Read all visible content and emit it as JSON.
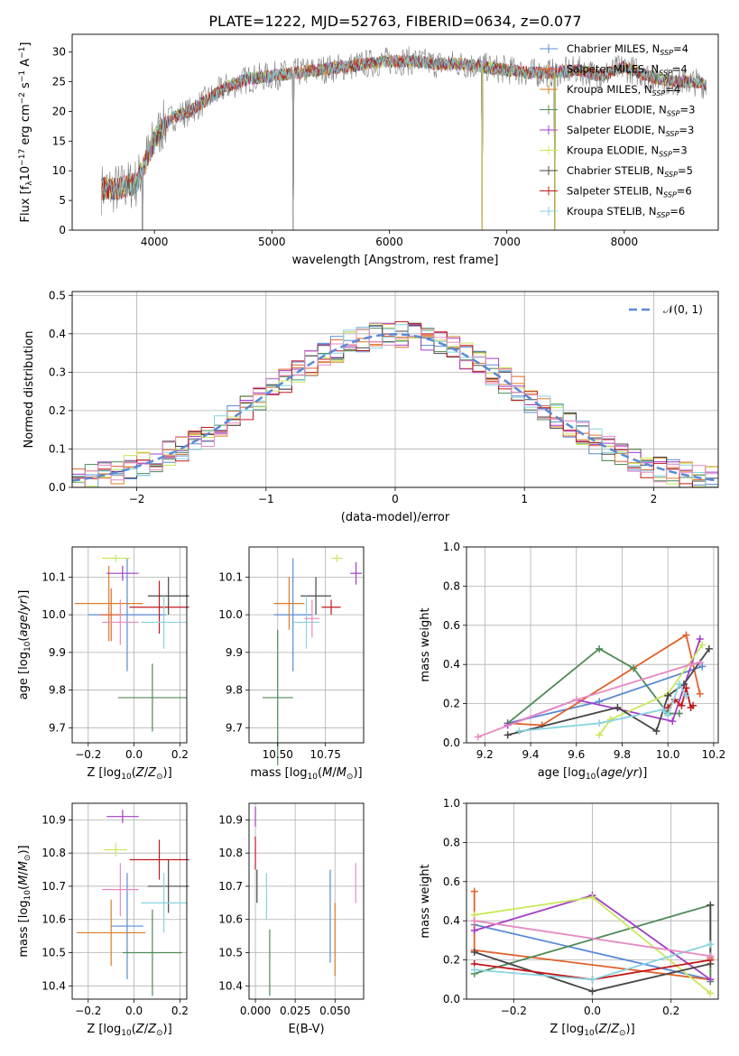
{
  "figure_title": "PLATE=1222, MJD=52763, FIBERID=0634, z=0.077",
  "colors": {
    "chabrier_miles": "#5a8ad6",
    "salpeter_miles": "#e0622c",
    "kroupa_miles": "#d97c27",
    "chabrier_elodie": "#4f8a57",
    "salpeter_elodie": "#a43dc6",
    "kroupa_elodie": "#c9e85b",
    "chabrier_stelib": "#474747",
    "salpeter_stelib": "#c0181c",
    "kroupa_stelib": "#87d3e0",
    "gaussian": "#5a8ad6",
    "observed": "#7f7f7f"
  },
  "chart_data": [
    {
      "id": "spectrum",
      "type": "line",
      "title": "PLATE=1222, MJD=52763, FIBERID=0634, z=0.077",
      "xlabel": "wavelength [Angstrom, rest frame]",
      "ylabel": "Flux [f_λ 10^-17 erg cm^-2 s^-1 A^-1]",
      "xlim": [
        3300,
        8800
      ],
      "ylim": [
        0,
        33
      ],
      "xticks": [
        "4000",
        "5000",
        "6000",
        "7000",
        "8000"
      ],
      "yticks": [
        "0",
        "5",
        "10",
        "15",
        "20",
        "25",
        "30"
      ],
      "grid": false,
      "legend": {
        "position": "right",
        "entries": [
          "Chabrier MILES, N_SSP=4",
          "Salpeter MILES, N_SSP=4",
          "Kroupa MILES, N_SSP=4",
          "Chabrier ELODIE, N_SSP=3",
          "Salpeter ELODIE, N_SSP=3",
          "Kroupa ELODIE, N_SSP=3",
          "Chabrier STELIB, N_SSP=5",
          "Salpeter STELIB, N_SSP=6",
          "Kroupa STELIB, N_SSP=6"
        ]
      },
      "continuum_x": [
        3550,
        3700,
        3850,
        3950,
        4050,
        4150,
        4300,
        4450,
        4600,
        4800,
        5000,
        5200,
        5400,
        5600,
        5800,
        6000,
        6200,
        6400,
        6600,
        6800,
        7000,
        7200,
        7400,
        7600,
        7800,
        8000,
        8200,
        8400,
        8600,
        8700
      ],
      "continuum_y": [
        7,
        7,
        8,
        13,
        17,
        19,
        20,
        22,
        24,
        25.5,
        26,
        26.5,
        27,
        27.5,
        28,
        28.5,
        28.5,
        28,
        28,
        27.5,
        27,
        26.5,
        26.5,
        27,
        26,
        27.5,
        26,
        25,
        25,
        24.5
      ],
      "spikes": [
        {
          "x": 3900,
          "y": 0
        },
        {
          "x": 5180,
          "y": 0
        },
        {
          "x": 6790,
          "y": 0
        },
        {
          "x": 7410,
          "y": 0
        }
      ]
    },
    {
      "id": "residual-distribution",
      "type": "histogram",
      "xlabel": "(data-model)/error",
      "ylabel": "Normed distribution",
      "xlim": [
        -2.5,
        2.5
      ],
      "ylim": [
        0,
        0.51
      ],
      "xticks": [
        "−2",
        "−1",
        "0",
        "1",
        "2"
      ],
      "yticks": [
        "0.0",
        "0.1",
        "0.2",
        "0.3",
        "0.4",
        "0.5"
      ],
      "grid": true,
      "legend": {
        "position": "top-right",
        "entries": [
          "𝒩(0, 1)"
        ]
      },
      "gaussian": {
        "mean": 0,
        "sigma": 1
      },
      "bin_width": 0.1
    },
    {
      "id": "age-vs-metallicity",
      "type": "scatter",
      "xlabel": "Z [log10(Z/Z⊙)]",
      "ylabel": "age [log10(age/yr)]",
      "xlim": [
        -0.27,
        0.23
      ],
      "ylim": [
        9.66,
        10.18
      ],
      "xticks": [
        "−0.2",
        "0.0",
        "0.2"
      ],
      "yticks": [
        "9.7",
        "9.8",
        "9.9",
        "10.0",
        "10.1"
      ],
      "grid": true,
      "points": [
        {
          "series": "chabrier_miles",
          "x": -0.03,
          "y": 10.0,
          "xerr": 0.17,
          "yerr": 0.15
        },
        {
          "series": "salpeter_miles",
          "x": -0.1,
          "y": 10.0,
          "xerr": 0.05,
          "yerr": 0.07
        },
        {
          "series": "kroupa_miles",
          "x": -0.11,
          "y": 10.03,
          "xerr": 0.15,
          "yerr": 0.1
        },
        {
          "series": "chabrier_elodie",
          "x": 0.08,
          "y": 9.78,
          "xerr": 0.15,
          "yerr": 0.09
        },
        {
          "series": "salpeter_elodie",
          "x": -0.05,
          "y": 10.11,
          "xerr": 0.07,
          "yerr": 0.02
        },
        {
          "series": "kroupa_elodie",
          "x": -0.08,
          "y": 10.15,
          "xerr": 0.06,
          "yerr": 0.01
        },
        {
          "series": "chabrier_stelib",
          "x": 0.15,
          "y": 10.05,
          "xerr": 0.09,
          "yerr": 0.05
        },
        {
          "series": "salpeter_stelib",
          "x": 0.11,
          "y": 10.02,
          "xerr": 0.13,
          "yerr": 0.07
        },
        {
          "series": "kroupa_stelib",
          "x": 0.13,
          "y": 9.98,
          "xerr": 0.1,
          "yerr": 0.07
        },
        {
          "series": "pink",
          "x": -0.06,
          "y": 9.98,
          "xerr": 0.08,
          "yerr": 0.06
        }
      ]
    },
    {
      "id": "age-vs-mass",
      "type": "scatter",
      "xlabel": "mass [log10(M/M⊙)]",
      "xlim": [
        10.35,
        10.95
      ],
      "ylim": [
        9.66,
        10.18
      ],
      "xticks": [
        "10.50",
        "10.75"
      ],
      "yticks": [
        "9.7",
        "9.8",
        "9.9",
        "10.0",
        "10.1"
      ],
      "grid": true,
      "points": [
        {
          "series": "chabrier_miles",
          "x": 10.58,
          "y": 10.0,
          "xerr": 0.1,
          "yerr": 0.15
        },
        {
          "series": "kroupa_miles",
          "x": 10.56,
          "y": 10.03,
          "xerr": 0.08,
          "yerr": 0.07
        },
        {
          "series": "chabrier_elodie",
          "x": 10.5,
          "y": 9.78,
          "xerr": 0.08,
          "yerr": 0.18
        },
        {
          "series": "salpeter_elodie",
          "x": 10.91,
          "y": 10.11,
          "xerr": 0.03,
          "yerr": 0.03
        },
        {
          "series": "kroupa_elodie",
          "x": 10.81,
          "y": 10.15,
          "xerr": 0.03,
          "yerr": 0.01
        },
        {
          "series": "chabrier_stelib",
          "x": 10.7,
          "y": 10.05,
          "xerr": 0.08,
          "yerr": 0.05
        },
        {
          "series": "salpeter_stelib",
          "x": 10.78,
          "y": 10.02,
          "xerr": 0.05,
          "yerr": 0.02
        },
        {
          "series": "kroupa_stelib",
          "x": 10.65,
          "y": 9.98,
          "xerr": 0.07,
          "yerr": 0.07
        },
        {
          "series": "pink",
          "x": 10.68,
          "y": 9.99,
          "xerr": 0.04,
          "yerr": 0.05
        }
      ]
    },
    {
      "id": "mass-weight-vs-age",
      "type": "line",
      "xlabel": "age [log10(age/yr)]",
      "ylabel": "mass weight",
      "xlim": [
        9.12,
        10.22
      ],
      "ylim": [
        0,
        1
      ],
      "xticks": [
        "9.2",
        "9.4",
        "9.6",
        "9.8",
        "10.0",
        "10.2"
      ],
      "yticks": [
        "0.0",
        "0.2",
        "0.4",
        "0.6",
        "0.8",
        "1.0"
      ],
      "grid": true,
      "series": [
        {
          "key": "chabrier_miles",
          "x": [
            9.3,
            9.7,
            10.15
          ],
          "y": [
            0.1,
            0.21,
            0.39
          ]
        },
        {
          "key": "salpeter_miles",
          "x": [
            9.3,
            9.45,
            10.08,
            10.14
          ],
          "y": [
            0.1,
            0.09,
            0.55,
            0.25
          ]
        },
        {
          "key": "chabrier_elodie",
          "x": [
            9.3,
            9.7,
            9.85,
            10.0,
            10.05
          ],
          "y": [
            0.1,
            0.48,
            0.38,
            0.15,
            0.15
          ]
        },
        {
          "key": "salpeter_elodie",
          "x": [
            9.3,
            9.6,
            10.02,
            10.14
          ],
          "y": [
            0.09,
            0.22,
            0.11,
            0.53
          ]
        },
        {
          "key": "kroupa_elodie",
          "x": [
            9.7,
            9.75,
            10.0,
            10.15
          ],
          "y": [
            0.04,
            0.12,
            0.25,
            0.5
          ]
        },
        {
          "key": "chabrier_stelib",
          "x": [
            9.3,
            9.78,
            9.95,
            10.0,
            10.07,
            10.18
          ],
          "y": [
            0.04,
            0.18,
            0.06,
            0.24,
            0.3,
            0.48
          ]
        },
        {
          "key": "salpeter_stelib",
          "x": [
            10.0,
            10.03,
            10.06,
            10.08,
            10.1,
            10.11
          ],
          "y": [
            0.18,
            0.22,
            0.19,
            0.28,
            0.18,
            0.19
          ]
        },
        {
          "key": "kroupa_stelib",
          "x": [
            9.35,
            9.7,
            9.98,
            10.0,
            10.05,
            10.08
          ],
          "y": [
            0.06,
            0.1,
            0.17,
            0.14,
            0.3,
            0.24
          ]
        },
        {
          "key": "pink",
          "x": [
            9.17,
            9.6,
            10.1,
            10.14
          ],
          "y": [
            0.03,
            0.22,
            0.4,
            0.41
          ]
        }
      ]
    },
    {
      "id": "mass-vs-metallicity",
      "type": "scatter",
      "xlabel": "Z [log10(Z/Z⊙)]",
      "ylabel": "mass [log10(M/M⊙)]",
      "xlim": [
        -0.27,
        0.23
      ],
      "ylim": [
        10.36,
        10.95
      ],
      "xticks": [
        "−0.2",
        "0.0",
        "0.2"
      ],
      "yticks": [
        "10.4",
        "10.5",
        "10.6",
        "10.7",
        "10.8",
        "10.9"
      ],
      "grid": true,
      "points": [
        {
          "series": "chabrier_miles",
          "x": -0.03,
          "y": 10.58,
          "xerr": 0.07,
          "yerr": 0.16
        },
        {
          "series": "kroupa_miles",
          "x": -0.1,
          "y": 10.56,
          "xerr": 0.15,
          "yerr": 0.1
        },
        {
          "series": "chabrier_elodie",
          "x": 0.08,
          "y": 10.5,
          "xerr": 0.13,
          "yerr": 0.13
        },
        {
          "series": "salpeter_elodie",
          "x": -0.05,
          "y": 10.91,
          "xerr": 0.07,
          "yerr": 0.02
        },
        {
          "series": "kroupa_elodie",
          "x": -0.08,
          "y": 10.81,
          "xerr": 0.05,
          "yerr": 0.02
        },
        {
          "series": "chabrier_stelib",
          "x": 0.15,
          "y": 10.7,
          "xerr": 0.09,
          "yerr": 0.08
        },
        {
          "series": "salpeter_stelib",
          "x": 0.11,
          "y": 10.78,
          "xerr": 0.13,
          "yerr": 0.06
        },
        {
          "series": "kroupa_stelib",
          "x": 0.13,
          "y": 10.65,
          "xerr": 0.1,
          "yerr": 0.09
        },
        {
          "series": "pink",
          "x": -0.06,
          "y": 10.69,
          "xerr": 0.08,
          "yerr": 0.08
        }
      ]
    },
    {
      "id": "mass-vs-ebv",
      "type": "scatter",
      "xlabel": "E(B-V)",
      "xlim": [
        -0.004,
        0.068
      ],
      "ylim": [
        10.36,
        10.95
      ],
      "xticks": [
        "0.000",
        "0.025",
        "0.050"
      ],
      "yticks": [
        "10.4",
        "10.5",
        "10.6",
        "10.7",
        "10.8",
        "10.9"
      ],
      "grid": true,
      "points": [
        {
          "series": "chabrier_miles",
          "x": 0.047,
          "y": 10.61,
          "xerr": 0,
          "yerr": 0.14
        },
        {
          "series": "kroupa_miles",
          "x": 0.05,
          "y": 10.54,
          "xerr": 0,
          "yerr": 0.11
        },
        {
          "series": "chabrier_elodie",
          "x": 0.009,
          "y": 10.47,
          "xerr": 0,
          "yerr": 0.1
        },
        {
          "series": "salpeter_elodie",
          "x": 0.0,
          "y": 10.91,
          "xerr": 0,
          "yerr": 0.03
        },
        {
          "series": "chabrier_stelib",
          "x": 0.001,
          "y": 10.7,
          "xerr": 0,
          "yerr": 0.05
        },
        {
          "series": "salpeter_stelib",
          "x": 0.0,
          "y": 10.8,
          "xerr": 0,
          "yerr": 0.05
        },
        {
          "series": "kroupa_stelib",
          "x": 0.007,
          "y": 10.67,
          "xerr": 0,
          "yerr": 0.07
        },
        {
          "series": "pink",
          "x": 0.063,
          "y": 10.71,
          "xerr": 0,
          "yerr": 0.06
        }
      ]
    },
    {
      "id": "mass-weight-vs-metallicity",
      "type": "line",
      "xlabel": "Z [log10(Z/Z⊙)]",
      "ylabel": "mass weight",
      "xlim": [
        -0.32,
        0.32
      ],
      "ylim": [
        0,
        1
      ],
      "xticks": [
        "−0.2",
        "0.0",
        "0.2"
      ],
      "yticks": [
        "0.0",
        "0.2",
        "0.4",
        "0.6",
        "0.8",
        "1.0"
      ],
      "grid": true,
      "series": [
        {
          "key": "chabrier_miles",
          "x": [
            -0.3,
            0.3
          ],
          "y": [
            0.38,
            0.1
          ]
        },
        {
          "key": "salpeter_miles",
          "x": [
            -0.3,
            -0.3,
            0.3,
            0.3
          ],
          "y": [
            0.55,
            0.25,
            0.1,
            0.21
          ]
        },
        {
          "key": "chabrier_elodie",
          "x": [
            -0.3,
            0.3,
            0.3
          ],
          "y": [
            0.13,
            0.48,
            0.09
          ]
        },
        {
          "key": "salpeter_elodie",
          "x": [
            -0.3,
            0.0,
            0.3
          ],
          "y": [
            0.35,
            0.53,
            0.1
          ]
        },
        {
          "key": "kroupa_elodie",
          "x": [
            -0.3,
            0.0,
            0.3
          ],
          "y": [
            0.43,
            0.52,
            0.03
          ]
        },
        {
          "key": "chabrier_stelib",
          "x": [
            -0.3,
            0.0,
            0.3,
            0.3
          ],
          "y": [
            0.24,
            0.04,
            0.18,
            0.48
          ]
        },
        {
          "key": "salpeter_stelib",
          "x": [
            -0.3,
            0.0,
            0.3
          ],
          "y": [
            0.18,
            0.1,
            0.2
          ]
        },
        {
          "key": "kroupa_stelib",
          "x": [
            -0.3,
            0.0,
            0.3
          ],
          "y": [
            0.15,
            0.1,
            0.28
          ]
        },
        {
          "key": "pink",
          "x": [
            -0.3,
            0.3
          ],
          "y": [
            0.4,
            0.22
          ]
        }
      ]
    }
  ]
}
